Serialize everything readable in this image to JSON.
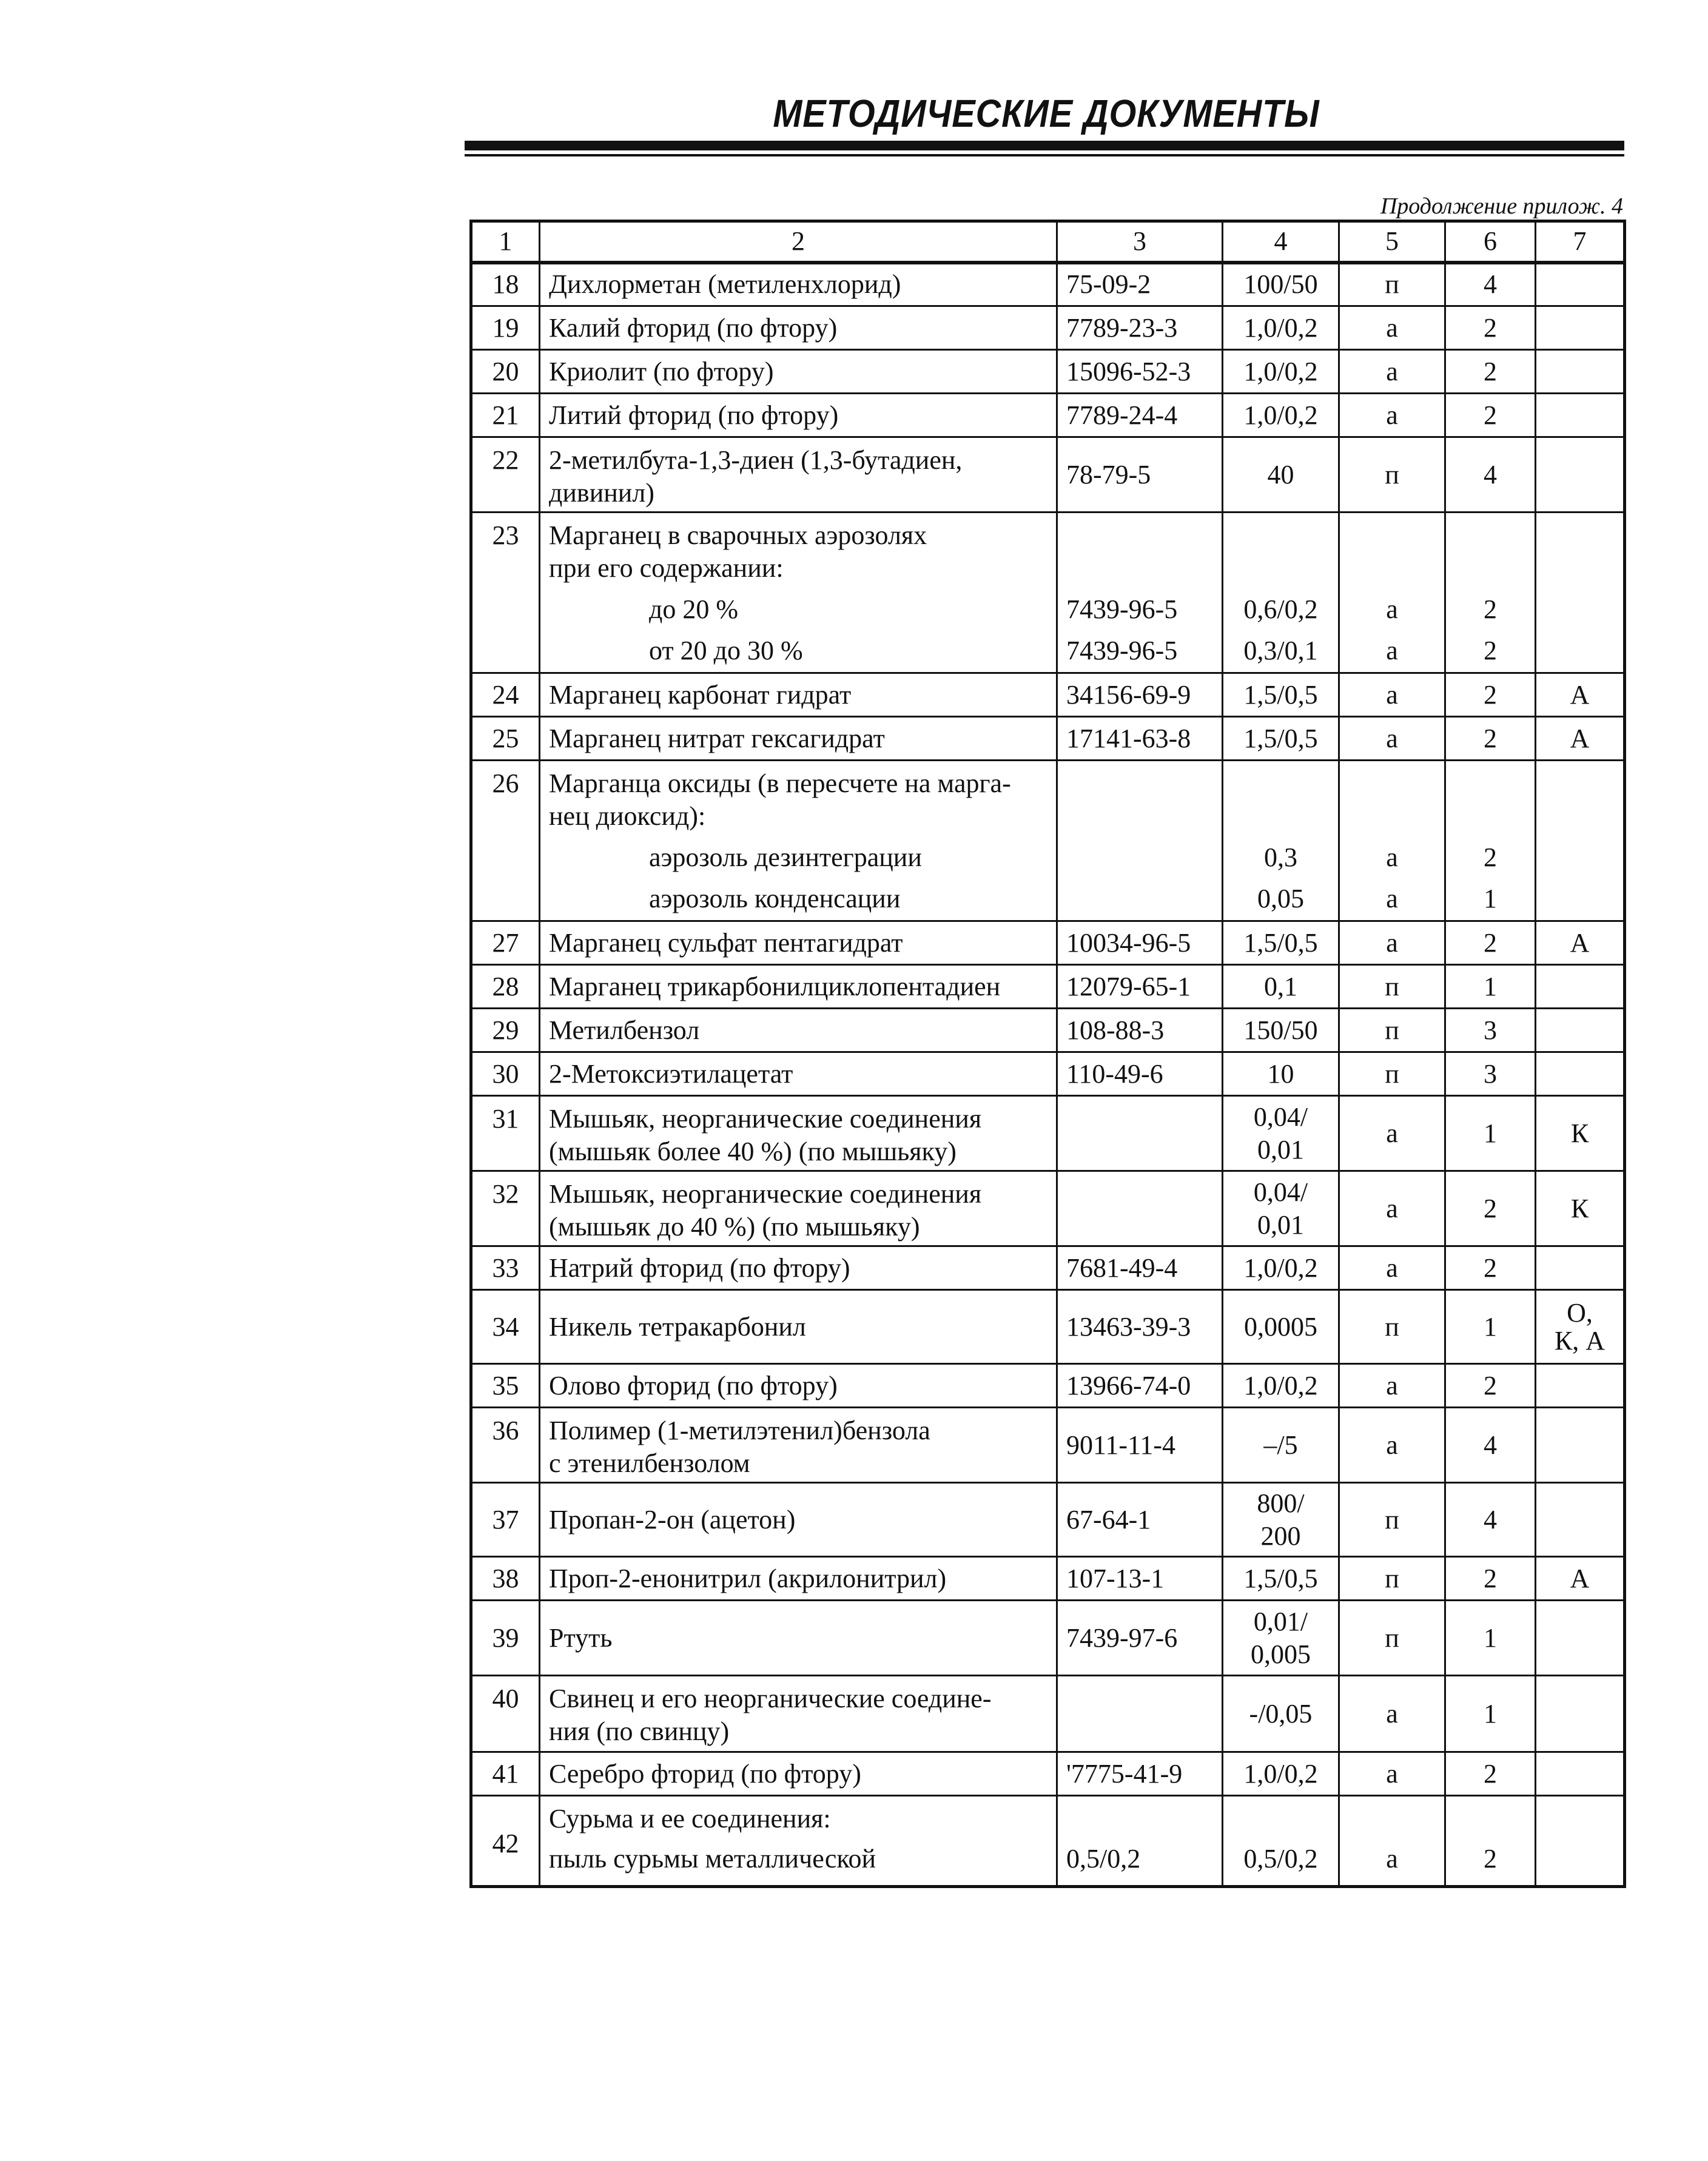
{
  "header": {
    "title": "МЕТОДИЧЕСКИЕ ДОКУМЕНТЫ",
    "continuation": "Продолжение прилож. 4"
  },
  "table": {
    "columns": [
      "1",
      "2",
      "3",
      "4",
      "5",
      "6",
      "7"
    ],
    "rows": [
      {
        "n": "18",
        "name": [
          "Дихлорметан (метиленхлорид)"
        ],
        "cas": [
          "75-09-2"
        ],
        "mac": [
          "100/50"
        ],
        "state": "п",
        "cls": "4",
        "note": []
      },
      {
        "n": "19",
        "name": [
          "Калий фторид (по фтору)"
        ],
        "cas": [
          "7789-23-3"
        ],
        "mac": [
          "1,0/0,2"
        ],
        "state": "а",
        "cls": "2",
        "note": []
      },
      {
        "n": "20",
        "name": [
          "Криолит (по фтору)"
        ],
        "cas": [
          "15096-52-3"
        ],
        "mac": [
          "1,0/0,2"
        ],
        "state": "а",
        "cls": "2",
        "note": []
      },
      {
        "n": "21",
        "name": [
          "Литий фторид (по фтору)"
        ],
        "cas": [
          "7789-24-4"
        ],
        "mac": [
          "1,0/0,2"
        ],
        "state": "а",
        "cls": "2",
        "note": []
      },
      {
        "n": "22",
        "name": [
          "2-метилбута-1,3-диен (1,3-бутадиен,",
          "дивинил)"
        ],
        "cas": [
          "78-79-5"
        ],
        "mac": [
          "40"
        ],
        "state": "п",
        "cls": "4",
        "note": []
      },
      {
        "n": "23",
        "name": [
          "Марганец в сварочных аэрозолях",
          "при его содержании:"
        ],
        "sub": [
          {
            "label": "до 20 %",
            "cas": "7439-96-5",
            "mac": "0,6/0,2",
            "state": "а",
            "cls": "2"
          },
          {
            "label": "от 20 до 30 %",
            "cas": "7439-96-5",
            "mac": "0,3/0,1",
            "state": "а",
            "cls": "2"
          }
        ],
        "note": []
      },
      {
        "n": "24",
        "name": [
          "Марганец карбонат гидрат"
        ],
        "cas": [
          "34156-69-9"
        ],
        "mac": [
          "1,5/0,5"
        ],
        "state": "а",
        "cls": "2",
        "note": [
          "А"
        ]
      },
      {
        "n": "25",
        "name": [
          "Марганец нитрат гексагидрат"
        ],
        "cas": [
          "17141-63-8"
        ],
        "mac": [
          "1,5/0,5"
        ],
        "state": "а",
        "cls": "2",
        "note": [
          "А"
        ]
      },
      {
        "n": "26",
        "name": [
          "Марганца оксиды (в пересчете на марга-",
          "нец диоксид):"
        ],
        "sub": [
          {
            "label": "аэрозоль дезинтеграции",
            "cas": "",
            "mac": "0,3",
            "state": "а",
            "cls": "2"
          },
          {
            "label": "аэрозоль конденсации",
            "cas": "",
            "mac": "0,05",
            "state": "а",
            "cls": "1"
          }
        ],
        "note": []
      },
      {
        "n": "27",
        "name": [
          "Марганец сульфат пентагидрат"
        ],
        "cas": [
          "10034-96-5"
        ],
        "mac": [
          "1,5/0,5"
        ],
        "state": "а",
        "cls": "2",
        "note": [
          "А"
        ]
      },
      {
        "n": "28",
        "name": [
          "Марганец трикарбонилциклопентадиен"
        ],
        "cas": [
          "12079-65-1"
        ],
        "mac": [
          "0,1"
        ],
        "state": "п",
        "cls": "1",
        "note": []
      },
      {
        "n": "29",
        "name": [
          "Метилбензол"
        ],
        "cas": [
          "108-88-3"
        ],
        "mac": [
          "150/50"
        ],
        "state": "п",
        "cls": "3",
        "note": []
      },
      {
        "n": "30",
        "name": [
          "2-Метоксиэтилацетат"
        ],
        "cas": [
          "110-49-6"
        ],
        "mac": [
          "10"
        ],
        "state": "п",
        "cls": "3",
        "note": []
      },
      {
        "n": "31",
        "name": [
          "Мышьяк, неорганические соединения",
          "(мышьяк более 40 %) (по мышьяку)"
        ],
        "cas": [],
        "mac": [
          "0,04/",
          "0,01"
        ],
        "state": "а",
        "cls": "1",
        "note": [
          "К"
        ]
      },
      {
        "n": "32",
        "name": [
          "Мышьяк, неорганические соединения",
          "(мышьяк до 40 %) (по мышьяку)"
        ],
        "cas": [],
        "mac": [
          "0,04/",
          "0,01"
        ],
        "state": "а",
        "cls": "2",
        "note": [
          "К"
        ]
      },
      {
        "n": "33",
        "name": [
          "Натрий фторид (по фтору)"
        ],
        "cas": [
          "7681-49-4"
        ],
        "mac": [
          "1,0/0,2"
        ],
        "state": "а",
        "cls": "2",
        "note": []
      },
      {
        "n": "34",
        "name": [
          "Никель тетракарбонил"
        ],
        "cas": [
          "13463-39-3"
        ],
        "mac": [
          "0,0005"
        ],
        "state": "п",
        "cls": "1",
        "note": [
          "О,",
          "К, А"
        ]
      },
      {
        "n": "35",
        "name": [
          "Олово фторид (по фтору)"
        ],
        "cas": [
          "13966-74-0"
        ],
        "mac": [
          "1,0/0,2"
        ],
        "state": "а",
        "cls": "2",
        "note": []
      },
      {
        "n": "36",
        "name": [
          "Полимер (1-метилэтенил)бензола",
          "с этенилбензолом"
        ],
        "cas": [
          "9011-11-4"
        ],
        "mac": [
          "–/5"
        ],
        "state": "а",
        "cls": "4",
        "note": []
      },
      {
        "n": "37",
        "name": [
          "Пропан-2-он (ацетон)"
        ],
        "cas": [
          "67-64-1"
        ],
        "mac": [
          "800/",
          "200"
        ],
        "state": "п",
        "cls": "4",
        "note": []
      },
      {
        "n": "38",
        "name": [
          "Проп-2-енонитрил (акрилонитрил)"
        ],
        "cas": [
          "107-13-1"
        ],
        "mac": [
          "1,5/0,5"
        ],
        "state": "п",
        "cls": "2",
        "note": [
          "А"
        ]
      },
      {
        "n": "39",
        "name": [
          "Ртуть"
        ],
        "cas": [
          "7439-97-6"
        ],
        "mac": [
          "0,01/",
          "0,005"
        ],
        "state": "п",
        "cls": "1",
        "note": []
      },
      {
        "n": "40",
        "name": [
          "Свинец и его неорганические соедине-",
          "ния (по свинцу)"
        ],
        "cas": [],
        "mac": [
          "-/0,05"
        ],
        "state": "а",
        "cls": "1",
        "note": []
      },
      {
        "n": "41",
        "name": [
          "Серебро фторид (по фтору)"
        ],
        "cas": [
          "'7775-41-9"
        ],
        "mac": [
          "1,0/0,2"
        ],
        "state": "а",
        "cls": "2",
        "note": []
      },
      {
        "n": "42",
        "name": [
          "Сурьма и ее соединения:"
        ],
        "sub": [
          {
            "label": "пыль сурьмы металлической",
            "cas": "0,5/0,2",
            "mac": "0,5/0,2",
            "state": "а",
            "cls": "2"
          }
        ],
        "note": [],
        "nmid": true
      }
    ]
  }
}
